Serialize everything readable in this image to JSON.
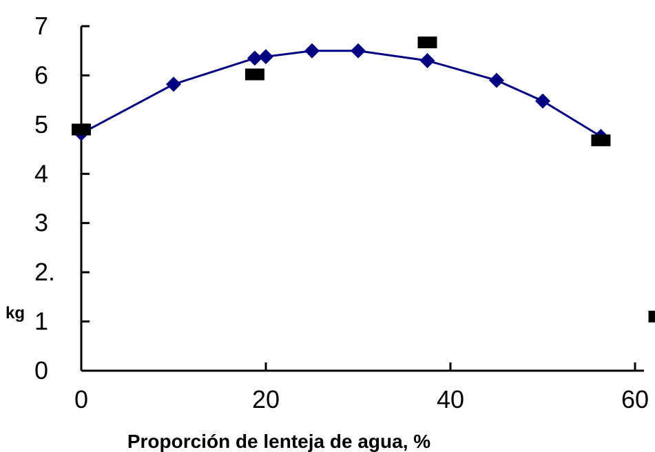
{
  "chart_data": {
    "type": "scatter",
    "title": "",
    "xlabel": "Proporción de lenteja de agua, %",
    "ylabel": "kg",
    "xlim": [
      0,
      60
    ],
    "ylim": [
      0,
      7
    ],
    "x_ticks": [
      "0",
      "20",
      "40",
      "60"
    ],
    "x_tick_values": [
      0,
      20,
      40,
      60
    ],
    "y_ticks": [
      "0",
      "1",
      "2.",
      "3",
      "4",
      "5",
      "6",
      "7"
    ],
    "y_tick_values": [
      0,
      1,
      2,
      3,
      4,
      5,
      6,
      7
    ],
    "grid": false,
    "legend": "none",
    "series": [
      {
        "marker": "diamond",
        "line": true,
        "color": "#000080",
        "x": [
          0,
          10,
          18.8,
          20,
          25,
          30,
          37.5,
          45,
          50,
          56.3
        ],
        "y": [
          4.82,
          5.82,
          6.35,
          6.38,
          6.5,
          6.5,
          6.3,
          5.9,
          5.48,
          4.76
        ]
      },
      {
        "marker": "square",
        "line": false,
        "color": "#000000",
        "x": [
          0,
          18.8,
          37.5,
          56.3,
          62.5
        ],
        "y": [
          4.9,
          6.02,
          6.67,
          4.68,
          1.1
        ]
      }
    ]
  }
}
